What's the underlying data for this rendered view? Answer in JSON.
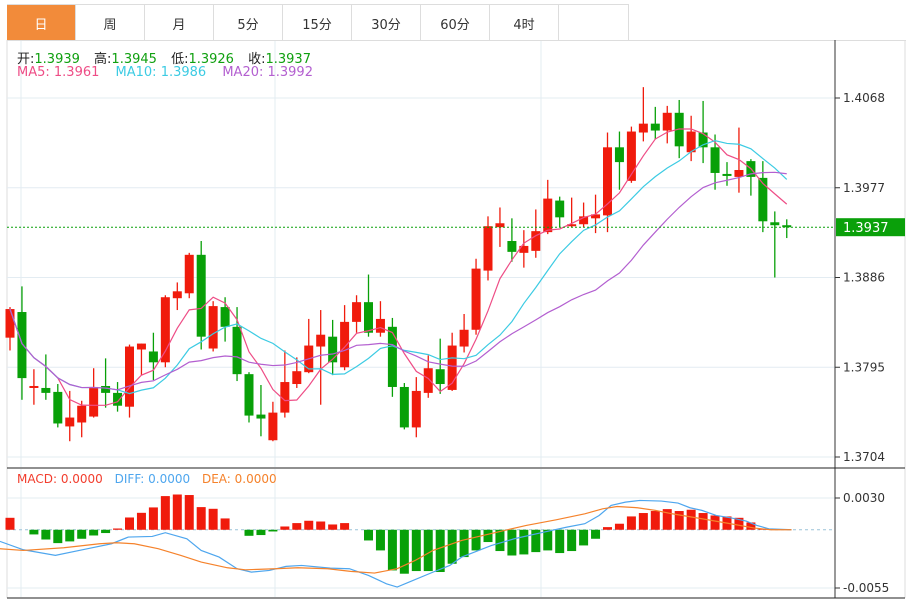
{
  "tabs": [
    {
      "label": "日",
      "active": true
    },
    {
      "label": "周"
    },
    {
      "label": "月"
    },
    {
      "label": "5分"
    },
    {
      "label": "15分"
    },
    {
      "label": "30分"
    },
    {
      "label": "60分"
    },
    {
      "label": "4时"
    }
  ],
  "ohlc": {
    "open_label": "开:",
    "open": "1.3939",
    "high_label": "高:",
    "high": "1.3945",
    "low_label": "低:",
    "low": "1.3926",
    "close_label": "收:",
    "close": "1.3937"
  },
  "ma": {
    "ma5": "MA5: 1.3961",
    "ma10": "MA10: 1.3986",
    "ma20": "MA20: 1.3992"
  },
  "macd_info": {
    "macd": "MACD: 0.0000",
    "diff": "DIFF: 0.0000",
    "dea": "DEA: 0.0000"
  },
  "colors": {
    "up": "#f01b0c",
    "down": "#08a008",
    "tab_active": "#f28b3a",
    "ma5": "#ee4d86",
    "ma10": "#3ccbe3",
    "ma20": "#b35fd0",
    "diff": "#4ea6ee",
    "dea": "#f5822b",
    "macd_label": "#f23d2d",
    "last_price": "#0aa00a"
  },
  "chart_data": {
    "type": "candlestick",
    "price_axis": {
      "ticks": [
        "1.4068",
        "1.3977",
        "1.3886",
        "1.3795",
        "1.3704"
      ],
      "range": [
        1.3704,
        1.4068
      ]
    },
    "last_price": "1.3937",
    "candles": [
      [
        1.3825,
        1.3856,
        1.3812,
        1.3854
      ],
      [
        1.3851,
        1.3877,
        1.3762,
        1.3784
      ],
      [
        1.3774,
        1.3793,
        1.3757,
        1.3776
      ],
      [
        1.3774,
        1.3808,
        1.3762,
        1.3769
      ],
      [
        1.377,
        1.3778,
        1.3734,
        1.3738
      ],
      [
        1.3735,
        1.3771,
        1.372,
        1.3744
      ],
      [
        1.3739,
        1.3761,
        1.3724,
        1.3756
      ],
      [
        1.3745,
        1.3794,
        1.3744,
        1.3775
      ],
      [
        1.3776,
        1.3804,
        1.3754,
        1.3769
      ],
      [
        1.3769,
        1.378,
        1.375,
        1.3756
      ],
      [
        1.3755,
        1.3818,
        1.3744,
        1.3816
      ],
      [
        1.3813,
        1.3819,
        1.3787,
        1.3819
      ],
      [
        1.3811,
        1.383,
        1.3782,
        1.38
      ],
      [
        1.38,
        1.3868,
        1.3795,
        1.3866
      ],
      [
        1.3865,
        1.3881,
        1.3853,
        1.3872
      ],
      [
        1.387,
        1.3911,
        1.3865,
        1.3909
      ],
      [
        1.3909,
        1.3923,
        1.3813,
        1.3826
      ],
      [
        1.3814,
        1.3862,
        1.3811,
        1.3857
      ],
      [
        1.3856,
        1.3866,
        1.3821,
        1.3836
      ],
      [
        1.3836,
        1.3856,
        1.3781,
        1.3788
      ],
      [
        1.3788,
        1.379,
        1.3739,
        1.3746
      ],
      [
        1.3747,
        1.3777,
        1.3725,
        1.3743
      ],
      [
        1.3721,
        1.376,
        1.372,
        1.3749
      ],
      [
        1.3749,
        1.3812,
        1.3744,
        1.378
      ],
      [
        1.3778,
        1.3805,
        1.3774,
        1.3791
      ],
      [
        1.379,
        1.3844,
        1.3789,
        1.3817
      ],
      [
        1.3816,
        1.3853,
        1.3757,
        1.3828
      ],
      [
        1.3826,
        1.3843,
        1.3787,
        1.38
      ],
      [
        1.3795,
        1.3858,
        1.3792,
        1.3841
      ],
      [
        1.3841,
        1.3868,
        1.383,
        1.3861
      ],
      [
        1.3861,
        1.3889,
        1.3826,
        1.383
      ],
      [
        1.383,
        1.3862,
        1.3826,
        1.3844
      ],
      [
        1.3836,
        1.3845,
        1.3765,
        1.3775
      ],
      [
        1.3775,
        1.3779,
        1.3732,
        1.3734
      ],
      [
        1.3734,
        1.3785,
        1.3724,
        1.3771
      ],
      [
        1.3769,
        1.3807,
        1.3764,
        1.3794
      ],
      [
        1.3793,
        1.3824,
        1.3768,
        1.3778
      ],
      [
        1.3772,
        1.383,
        1.3771,
        1.3817
      ],
      [
        1.3816,
        1.3849,
        1.381,
        1.3833
      ],
      [
        1.3833,
        1.3905,
        1.3828,
        1.3895
      ],
      [
        1.3893,
        1.3948,
        1.3883,
        1.3938
      ],
      [
        1.3937,
        1.3957,
        1.3917,
        1.3941
      ],
      [
        1.3923,
        1.3946,
        1.3902,
        1.3912
      ],
      [
        1.3911,
        1.3934,
        1.3896,
        1.3918
      ],
      [
        1.3913,
        1.3955,
        1.3906,
        1.3933
      ],
      [
        1.3932,
        1.3985,
        1.393,
        1.3966
      ],
      [
        1.3964,
        1.3968,
        1.3937,
        1.3947
      ],
      [
        1.3939,
        1.3967,
        1.3937,
        1.394
      ],
      [
        1.394,
        1.3962,
        1.3937,
        1.3948
      ],
      [
        1.3946,
        1.397,
        1.3931,
        1.395
      ],
      [
        1.3949,
        1.4033,
        1.3932,
        1.4018
      ],
      [
        1.4018,
        1.4034,
        1.3975,
        1.4003
      ],
      [
        1.3984,
        1.4039,
        1.3982,
        1.4034
      ],
      [
        1.4033,
        1.4079,
        1.4024,
        1.4042
      ],
      [
        1.4042,
        1.4059,
        1.4026,
        1.4035
      ],
      [
        1.4035,
        1.406,
        1.4022,
        1.4053
      ],
      [
        1.4053,
        1.4066,
        1.4007,
        1.4019
      ],
      [
        1.4013,
        1.405,
        1.4004,
        1.4034
      ],
      [
        1.4033,
        1.4065,
        1.4002,
        1.4018
      ],
      [
        1.4018,
        1.4031,
        1.3975,
        1.3992
      ],
      [
        1.3991,
        1.4003,
        1.3979,
        1.3989
      ],
      [
        1.3988,
        1.4038,
        1.3972,
        1.3995
      ],
      [
        1.4004,
        1.4006,
        1.3969,
        1.3988
      ],
      [
        1.3987,
        1.4004,
        1.3932,
        1.3943
      ],
      [
        1.3942,
        1.3953,
        1.3886,
        1.3939
      ],
      [
        1.3939,
        1.3945,
        1.3926,
        1.3937
      ]
    ],
    "macd_axis": {
      "ticks": [
        "0.0030",
        "-0.0055"
      ],
      "range": [
        -0.0055,
        0.003
      ]
    },
    "macd_hist": [
      0.00113,
      0,
      -0.00044,
      -0.00092,
      -0.00126,
      -0.0011,
      -0.00085,
      -0.00054,
      -0.00031,
      0.00012,
      0.00116,
      0.0016,
      0.00211,
      0.00318,
      0.00333,
      0.00328,
      0.00214,
      0.00198,
      0.00107,
      0,
      -0.00057,
      -0.0005,
      -0.00016,
      0.00031,
      0.00063,
      0.00085,
      0.00078,
      0.0005,
      0.00063,
      0,
      -0.00101,
      -0.00195,
      -0.00384,
      -0.00415,
      -0.0039,
      -0.0039,
      -0.00399,
      -0.00321,
      -0.00258,
      -0.00195,
      -0.00116,
      -0.00201,
      -0.00243,
      -0.00233,
      -0.00211,
      -0.00195,
      -0.0022,
      -0.00201,
      -0.00148,
      -0.00085,
      0.00025,
      0.00057,
      0.00126,
      0.00158,
      0.00177,
      0.00195,
      0.00177,
      0.00189,
      0.00158,
      0.00135,
      0.00126,
      0.00113,
      0.00069,
      9e-05,
      0,
      0
    ],
    "diff": [
      [
        -0.84,
        -0.0011
      ],
      [
        1.12,
        -0.00189
      ],
      [
        3.8,
        -0.00242
      ],
      [
        6.5,
        -0.00179
      ],
      [
        8.5,
        -0.00132
      ],
      [
        9.9,
        -0.00069
      ],
      [
        11.9,
        -0.00063
      ],
      [
        13.0,
        -0.00028
      ],
      [
        14.8,
        -0.00085
      ],
      [
        16.0,
        -0.00195
      ],
      [
        17.5,
        -0.00258
      ],
      [
        19.0,
        -0.00368
      ],
      [
        20.2,
        -0.004
      ],
      [
        21.7,
        -0.00384
      ],
      [
        23.1,
        -0.00346
      ],
      [
        24.4,
        -0.00337
      ],
      [
        26.8,
        -0.00362
      ],
      [
        28.4,
        -0.00368
      ],
      [
        30.0,
        -0.00431
      ],
      [
        31.5,
        -0.0051
      ],
      [
        32.4,
        -0.00541
      ],
      [
        33.4,
        -0.00494
      ],
      [
        35.4,
        -0.004
      ],
      [
        36.8,
        -0.00337
      ],
      [
        37.8,
        -0.00258
      ],
      [
        40.3,
        -0.00148
      ],
      [
        42.2,
        -0.00085
      ],
      [
        44.7,
        -0.00022
      ],
      [
        46.6,
        0.00025
      ],
      [
        48.1,
        0.00057
      ],
      [
        49.3,
        0.00135
      ],
      [
        50.3,
        0.0023
      ],
      [
        51.5,
        0.00261
      ],
      [
        52.7,
        0.00277
      ],
      [
        54.5,
        0.00271
      ],
      [
        55.9,
        0.00252
      ],
      [
        56.9,
        0.00208
      ],
      [
        57.9,
        0.00183
      ],
      [
        59.1,
        0.00135
      ],
      [
        60.3,
        0.00113
      ],
      [
        61.6,
        0.00082
      ],
      [
        62.5,
        0.00041
      ],
      [
        63.5,
        9e-05
      ],
      [
        65.4,
        0
      ]
    ],
    "dea": [
      [
        -0.84,
        -0.00179
      ],
      [
        1.12,
        -0.00195
      ],
      [
        4.5,
        -0.0017
      ],
      [
        7.5,
        -0.00132
      ],
      [
        8.9,
        -0.00123
      ],
      [
        10.4,
        -0.00132
      ],
      [
        12.4,
        -0.00179
      ],
      [
        14.3,
        -0.00242
      ],
      [
        16.0,
        -0.00305
      ],
      [
        18.2,
        -0.00359
      ],
      [
        19.7,
        -0.00378
      ],
      [
        22.2,
        -0.00368
      ],
      [
        24.1,
        -0.00359
      ],
      [
        26.6,
        -0.00368
      ],
      [
        28.5,
        -0.00393
      ],
      [
        30.5,
        -0.00409
      ],
      [
        32.4,
        -0.00368
      ],
      [
        33.9,
        -0.0029
      ],
      [
        35.4,
        -0.00195
      ],
      [
        37.8,
        -0.00101
      ],
      [
        40.8,
        -0.00022
      ],
      [
        43.2,
        0.00041
      ],
      [
        45.7,
        0.00094
      ],
      [
        48.1,
        0.00151
      ],
      [
        49.6,
        0.00198
      ],
      [
        50.8,
        0.0022
      ],
      [
        52.5,
        0.00208
      ],
      [
        54.0,
        0.00183
      ],
      [
        55.4,
        0.00151
      ],
      [
        57.9,
        0.00104
      ],
      [
        60.3,
        0.00057
      ],
      [
        62.3,
        0.00016
      ],
      [
        63.7,
        0
      ],
      [
        65.4,
        0
      ]
    ]
  }
}
